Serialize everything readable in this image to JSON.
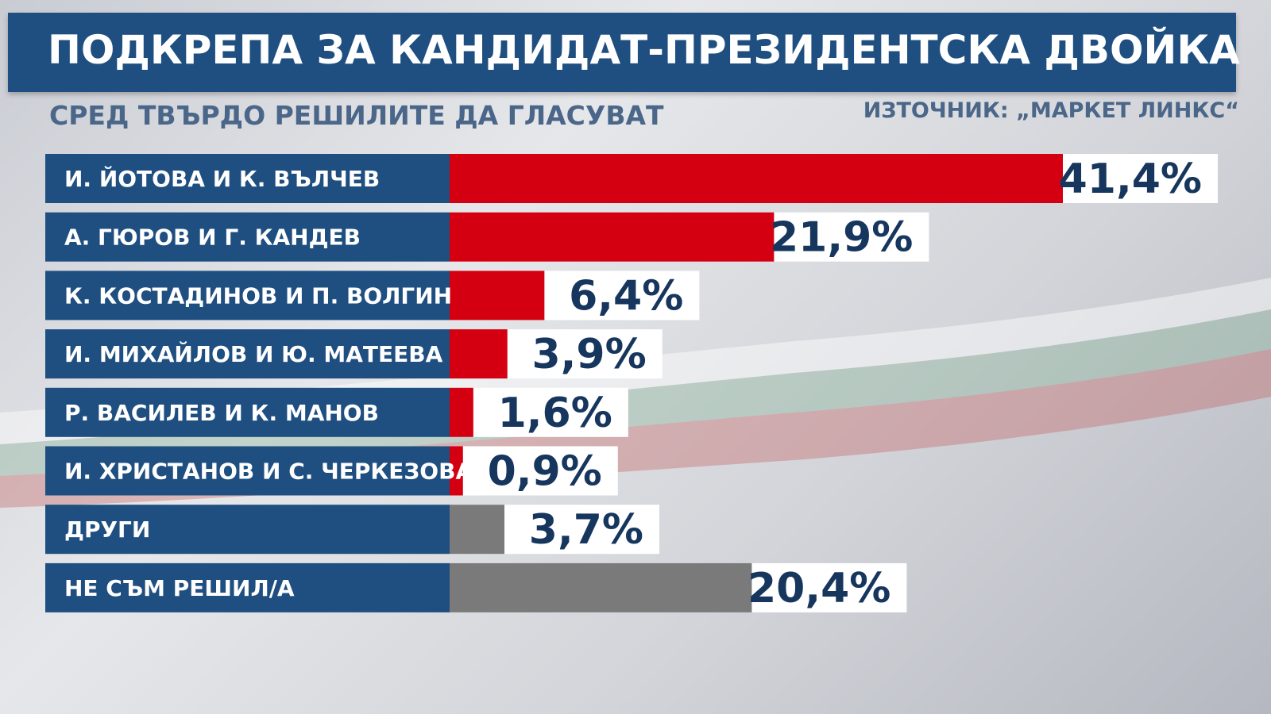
{
  "header": {
    "title": "ПОДКРЕПА ЗА КАНДИДАТ-ПРЕЗИДЕНТСКА ДВОЙКА",
    "subtitle": "СРЕД ТВЪРДО РЕШИЛИТЕ ДА ГЛАСУВАТ",
    "source": "ИЗТОЧНИК: „МАРКЕТ ЛИНКС“"
  },
  "colors": {
    "title_bg": "#1f4f80",
    "label_bg": "#1f4f80",
    "candidate_bar": "#d40012",
    "other_bar": "#7a7a7a",
    "value_box": "#ffffff",
    "value_text": "#16365e"
  },
  "chart_data": {
    "type": "bar",
    "orientation": "horizontal",
    "categories": [
      "И. ЙОТОВА И К. ВЪЛЧЕВ",
      "А. ГЮРОВ И Г. КАНДЕВ",
      "К. КОСТАДИНОВ И П. ВОЛГИН",
      "И. МИХАЙЛОВ И Ю. МАТЕЕВА",
      "Р. ВАСИЛЕВ И К. МАНОВ",
      "И. ХРИСТАНОВ И С. ЧЕРКЕЗОВА",
      "ДРУГИ",
      "НЕ СЪМ РЕШИЛ/А"
    ],
    "values": [
      41.4,
      21.9,
      6.4,
      3.9,
      1.6,
      0.9,
      3.7,
      20.4
    ],
    "value_labels": [
      "41,4%",
      "21,9%",
      "6,4%",
      "3,9%",
      "1,6%",
      "0,9%",
      "3,7%",
      "20,4%"
    ],
    "bar_colors": [
      "#d40012",
      "#d40012",
      "#d40012",
      "#d40012",
      "#d40012",
      "#d40012",
      "#7a7a7a",
      "#7a7a7a"
    ],
    "unit": "%",
    "xlim": [
      0,
      41.4
    ],
    "grid": false,
    "legend": "none"
  }
}
